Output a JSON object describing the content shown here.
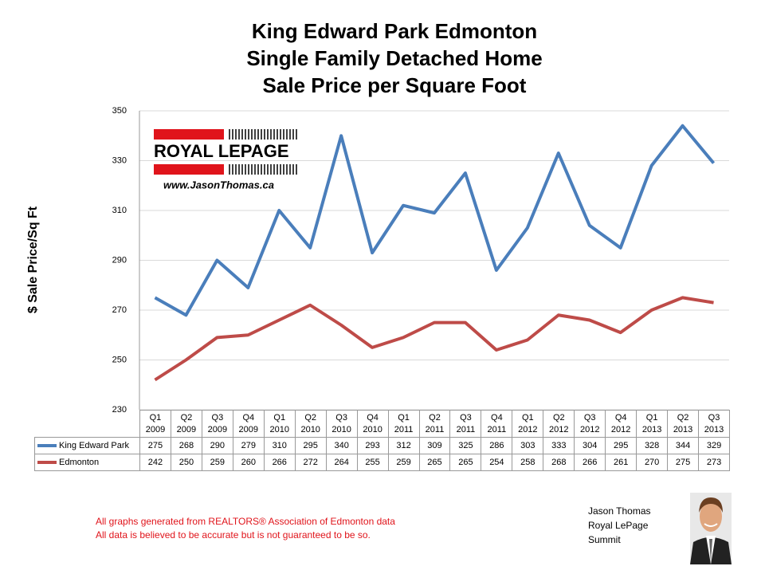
{
  "chart_data": {
    "type": "line",
    "title": "King Edward Park Edmonton\nSingle Family Detached Home\nSale Price per Square Foot",
    "y_label": "$ Sale Price/Sq Ft",
    "categories": [
      "Q1\n2009",
      "Q2\n2009",
      "Q3\n2009",
      "Q4\n2009",
      "Q1\n2010",
      "Q2\n2010",
      "Q3\n2010",
      "Q4\n2010",
      "Q1\n2011",
      "Q2\n2011",
      "Q3\n2011",
      "Q4\n2011",
      "Q1\n2012",
      "Q2\n2012",
      "Q3\n2012",
      "Q4\n2012",
      "Q1\n2013",
      "Q2\n2013",
      "Q3\n2013"
    ],
    "series": [
      {
        "name": "King Edward Park",
        "color": "#4a7ebb",
        "values": [
          275,
          268,
          290,
          279,
          310,
          295,
          340,
          293,
          312,
          309,
          325,
          286,
          303,
          333,
          304,
          295,
          328,
          344,
          329
        ]
      },
      {
        "name": "Edmonton",
        "color": "#be4b48",
        "values": [
          242,
          250,
          259,
          260,
          266,
          272,
          264,
          255,
          259,
          265,
          265,
          254,
          258,
          268,
          266,
          261,
          270,
          275,
          273
        ]
      }
    ],
    "ylim": [
      230,
      350
    ],
    "yticks": [
      230,
      250,
      270,
      290,
      310,
      330,
      350
    ],
    "grid": true,
    "logo": "ROYAL LEPAGE",
    "website": "www.JasonThomas.ca",
    "footnotes": [
      "All graphs generated from REALTORS® Association of Edmonton data",
      "All data is believed to be accurate but is not guaranteed to be so."
    ],
    "author": "Jason Thomas\nRoyal LePage\nSummit"
  }
}
